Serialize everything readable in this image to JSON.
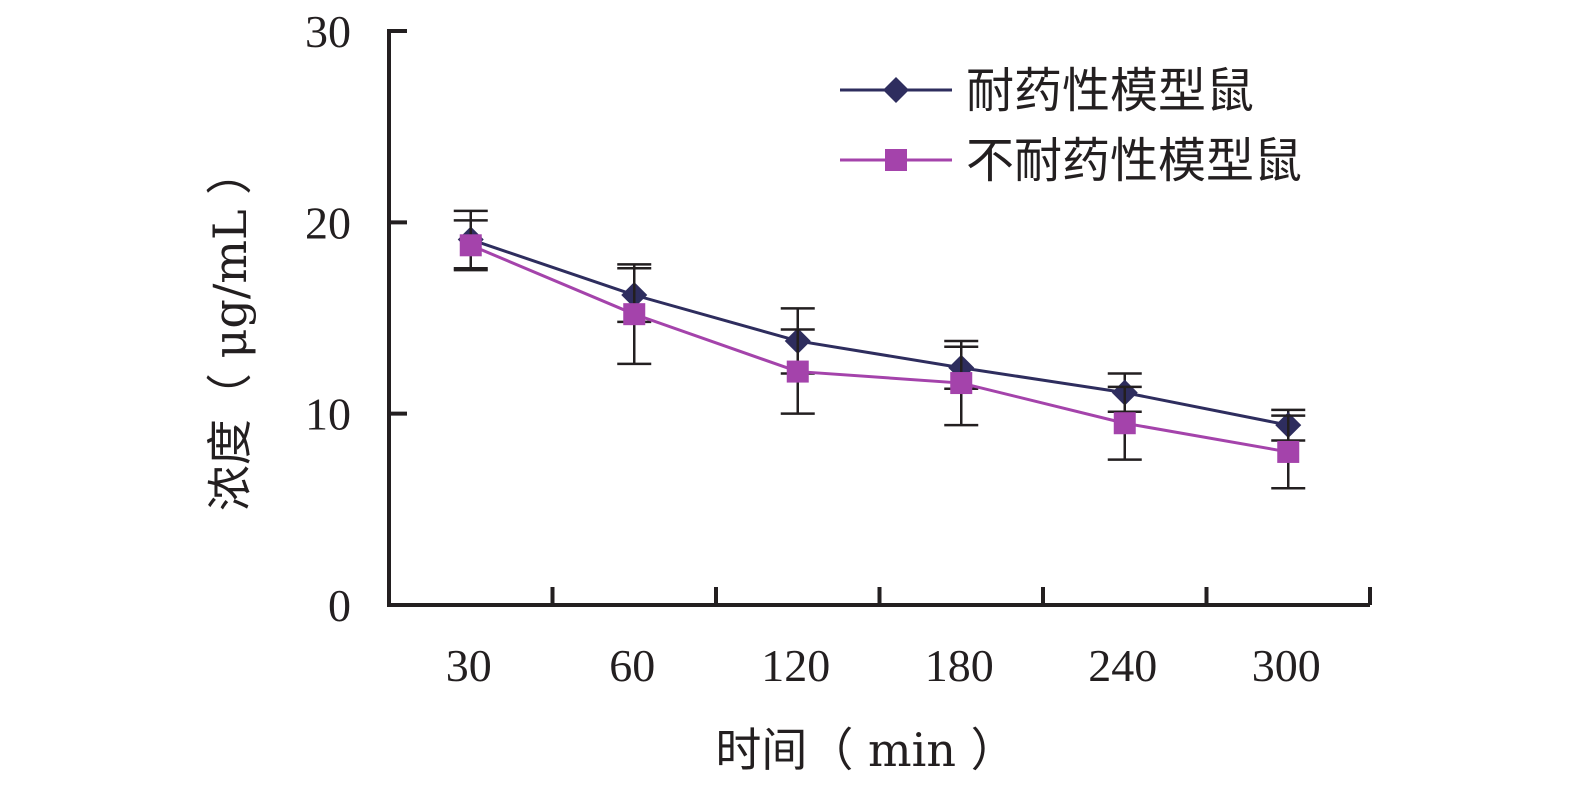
{
  "chart_data": {
    "type": "line",
    "categories": [
      "30",
      "60",
      "120",
      "180",
      "240",
      "300"
    ],
    "xlabel": "时间（ min ）",
    "ylabel": "浓度（ μg/mL ）",
    "ylim": [
      0,
      30
    ],
    "yticks": [
      "0",
      "10",
      "20",
      "30"
    ],
    "grid": false,
    "legend_position": "top-right",
    "series": [
      {
        "name": "耐药性模型鼠",
        "marker": "diamond",
        "color": "#2e2d5e",
        "values": [
          19.1,
          16.2,
          13.8,
          12.4,
          11.1,
          9.4
        ],
        "error": [
          1.5,
          1.4,
          1.7,
          1.1,
          1.0,
          0.8
        ]
      },
      {
        "name": "不耐药性模型鼠",
        "marker": "square",
        "color": "#a443ab",
        "values": [
          18.8,
          15.2,
          12.2,
          11.6,
          9.5,
          8.0
        ],
        "error": [
          1.3,
          2.6,
          2.2,
          2.2,
          1.9,
          1.9
        ]
      }
    ]
  }
}
